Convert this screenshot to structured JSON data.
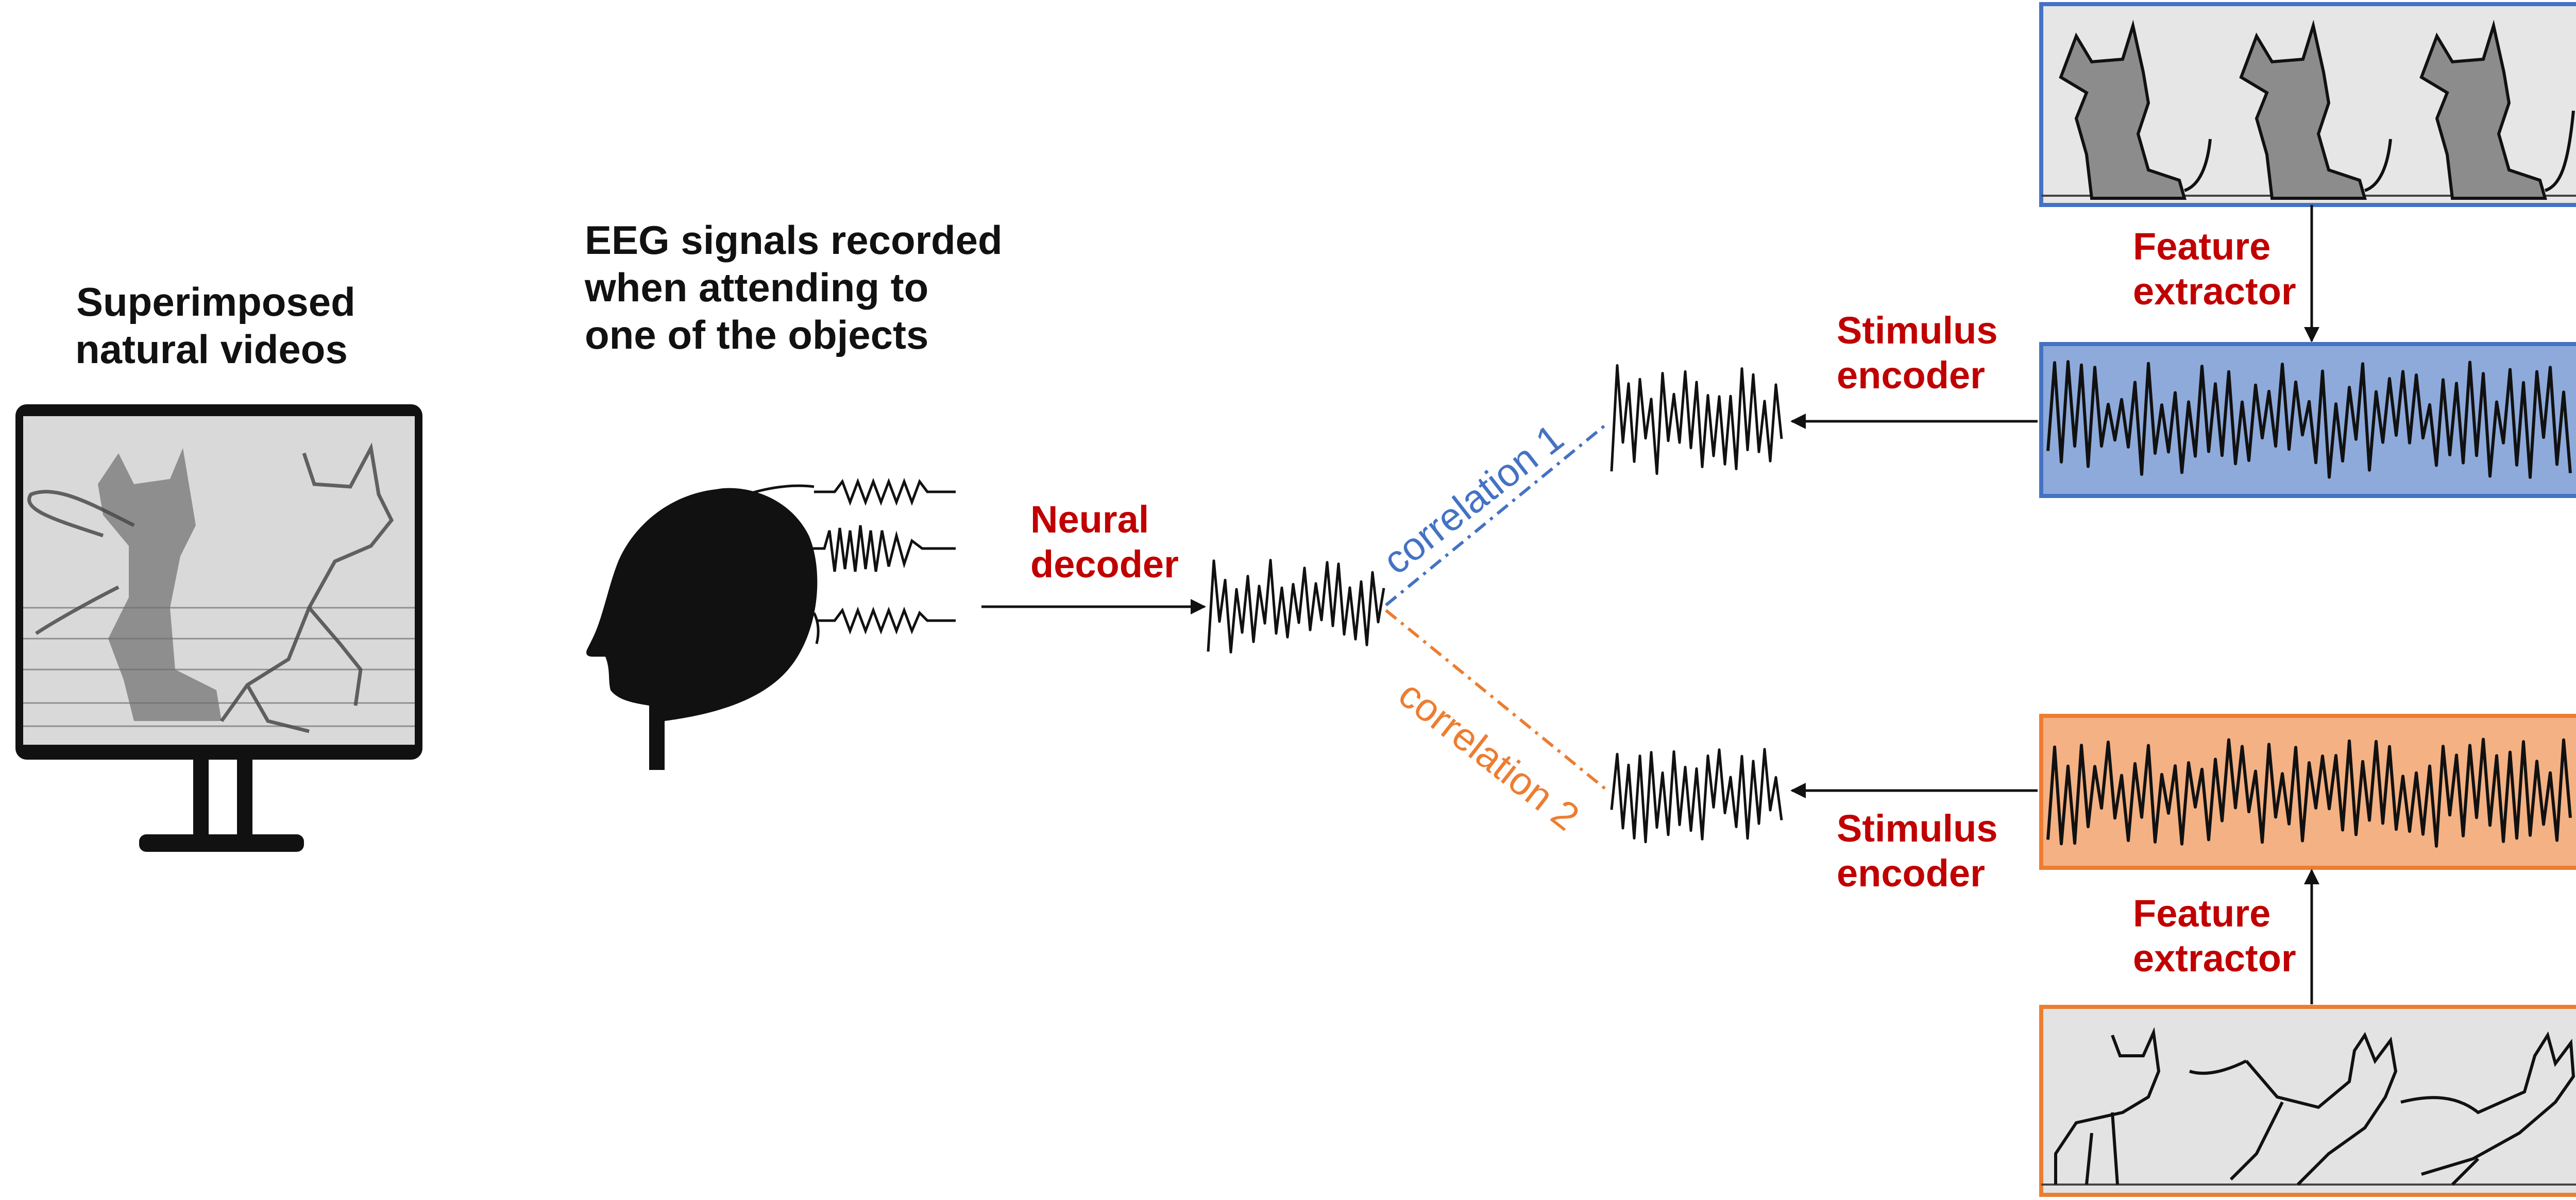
{
  "labels": {
    "superimposed_line1": "Superimposed",
    "superimposed_line2": "natural videos",
    "eeg_line1": "EEG signals recorded",
    "eeg_line2": "when attending to",
    "eeg_line3": "one of the objects",
    "neural_decoder_line1": "Neural",
    "neural_decoder_line2": "decoder",
    "stimulus_encoder_top_line1": "Stimulus",
    "stimulus_encoder_top_line2": "encoder",
    "stimulus_encoder_bottom_line1": "Stimulus",
    "stimulus_encoder_bottom_line2": "encoder",
    "feature_extractor_top_line1": "Feature",
    "feature_extractor_top_line2": "extractor",
    "feature_extractor_bottom_line1": "Feature",
    "feature_extractor_bottom_line2": "extractor",
    "correlation_1": "correlation 1",
    "correlation_2": "correlation 2"
  },
  "colors": {
    "label_red": "#c00000",
    "correlation_1": "#4472c4",
    "correlation_2": "#ed7d31",
    "dog_signal_fill": "#8eaadb",
    "dog_signal_border": "#4472c4",
    "cat_signal_fill": "#f4b183",
    "cat_signal_border": "#ed7d31",
    "ink": "#111111"
  },
  "icons": {
    "monitor": "monitor-icon",
    "head": "head-silhouette-icon",
    "dog_frames": "dog-frames-icon",
    "cat_frames": "cat-frames-icon"
  }
}
